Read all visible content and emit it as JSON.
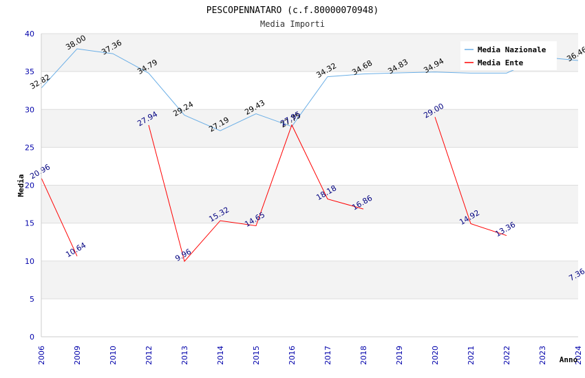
{
  "chart_data": {
    "type": "line",
    "title": "PESCOPENNATARO (c.f.80000070948)",
    "subtitle": "Media Importi",
    "xlabel": "Anno",
    "ylabel": "Media",
    "ylim": [
      0,
      40
    ],
    "yticks": [
      "0",
      "5",
      "10",
      "15",
      "20",
      "25",
      "30",
      "35",
      "40"
    ],
    "categories": [
      "2006",
      "2009",
      "2010",
      "2012",
      "2013",
      "2014",
      "2015",
      "2016",
      "2017",
      "2018",
      "2019",
      "2020",
      "2021",
      "2022",
      "2023",
      "2024"
    ],
    "grid": true,
    "legend_position": "top-right",
    "series": [
      {
        "name": "Media Nazionale",
        "color": "#6aaee6",
        "label_color": "#000000",
        "values": [
          32.82,
          38.0,
          37.36,
          34.79,
          29.24,
          27.19,
          29.43,
          27.75,
          34.32,
          34.68,
          34.83,
          34.94,
          34.8,
          34.8,
          36.9,
          36.46
        ],
        "labels": [
          "32.82",
          "38.00",
          "37.36",
          "34.79",
          "29.24",
          "27.19",
          "29.43",
          "27.75",
          "34.32",
          "34.68",
          "34.83",
          "34.94",
          "",
          "",
          "",
          "36.46"
        ]
      },
      {
        "name": "Media Ente",
        "color": "#ff0000",
        "label_color": "#000080",
        "values": [
          20.96,
          10.64,
          null,
          27.94,
          9.96,
          15.32,
          14.65,
          27.95,
          18.18,
          16.86,
          null,
          29.0,
          14.92,
          13.36,
          null,
          7.36
        ],
        "labels": [
          "20.96",
          "10.64",
          "",
          "27.94",
          "9.96",
          "15.32",
          "14.65",
          "27.95",
          "18.18",
          "16.86",
          "",
          "29.00",
          "14.92",
          "13.36",
          "",
          "7.36"
        ]
      }
    ]
  }
}
